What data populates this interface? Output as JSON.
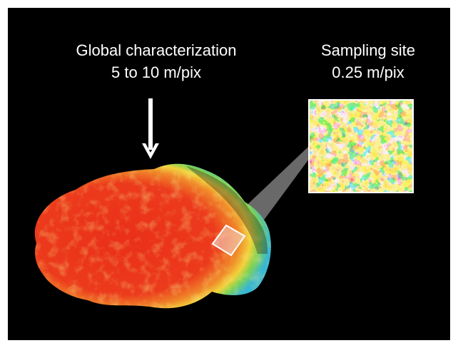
{
  "global": {
    "title": "Global characterization",
    "resolution": "5 to 10 m/pix"
  },
  "site": {
    "title": "Sampling site",
    "resolution": "0.25 m/pix"
  },
  "colors": {
    "background": "#000000",
    "surface_main": "#e8321d",
    "surface_edge_yellow": "#f5e63a",
    "surface_edge_green": "#6ccf4e",
    "surface_edge_cyan": "#3fc6d8",
    "site_blue": "#1f5be6",
    "frame": "#ffffff"
  }
}
